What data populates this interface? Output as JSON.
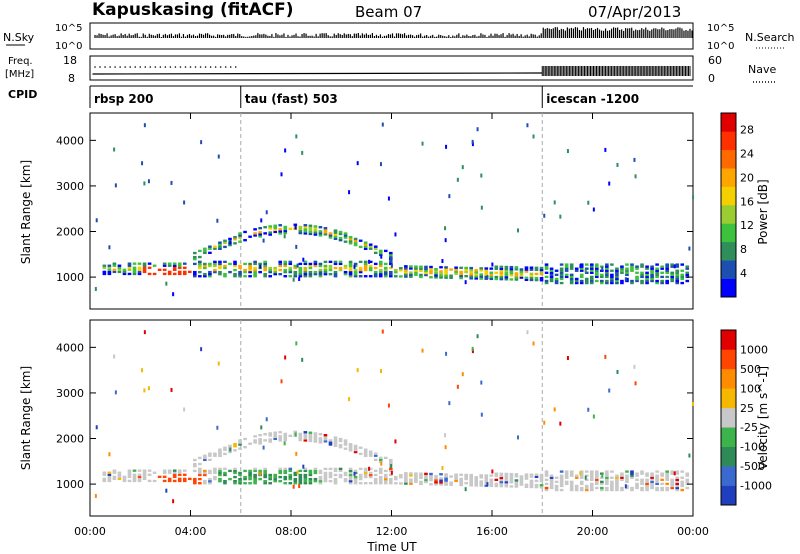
{
  "header": {
    "station": "Kapuskasing (fitACF)",
    "beam": "Beam 07",
    "date": "07/Apr/2013"
  },
  "time_axis": {
    "label": "Time UT",
    "ticks": [
      "00:00",
      "04:00",
      "08:00",
      "12:00",
      "16:00",
      "20:00",
      "00:00"
    ],
    "range_hours": [
      0,
      24
    ]
  },
  "sky_panel": {
    "left_label": "N.Sky",
    "right_label": "N.Search",
    "left_ticks": [
      "10^5",
      "10^0"
    ],
    "right_ticks": [
      "10^5",
      "10^0"
    ]
  },
  "freq_panel": {
    "left_label_top": "Freq.",
    "left_label_bottom": "[MHz]",
    "right_label": "Nave",
    "left_ticks": [
      "18",
      "8"
    ],
    "right_ticks": [
      "60",
      "0"
    ]
  },
  "cpid": {
    "label": "CPID",
    "segments": [
      {
        "name": "rbsp 200",
        "start_hour": 0
      },
      {
        "name": "tau (fast) 503",
        "start_hour": 6
      },
      {
        "name": "icescan -1200",
        "start_hour": 18
      }
    ]
  },
  "chart_data": [
    {
      "type": "heatmap",
      "title": "",
      "xlabel": "Time UT",
      "ylabel": "Slant Range [km]",
      "xlim": [
        0,
        24
      ],
      "ylim": [
        300,
        4600
      ],
      "yticks": [
        "1000",
        "2000",
        "3000",
        "4000"
      ],
      "colorbar": {
        "label": "Power [dB]",
        "ticks": [
          "4",
          "8",
          "12",
          "16",
          "20",
          "24",
          "28"
        ],
        "range": [
          0,
          30
        ],
        "colors": [
          "#0000ff",
          "#1c4fb0",
          "#2f8f5b",
          "#3cc23c",
          "#9acd32",
          "#f5d000",
          "#ffa500",
          "#ff6a00",
          "#ff3000",
          "#e00000"
        ]
      },
      "features": [
        {
          "name": "E-region/low band",
          "start_hour": 0.5,
          "end_hour": 24,
          "range_km_low": 950,
          "range_km_high": 1300
        },
        {
          "name": "arc",
          "start_hour": 4,
          "end_hour": 12,
          "range_km_low": 1300,
          "range_km_high": 2100
        }
      ]
    },
    {
      "type": "heatmap",
      "title": "",
      "xlabel": "Time UT",
      "ylabel": "Slant Range [km]",
      "xlim": [
        0,
        24
      ],
      "ylim": [
        300,
        4600
      ],
      "yticks": [
        "1000",
        "2000",
        "3000",
        "4000"
      ],
      "colorbar": {
        "label": "Velocity [m s^-1]",
        "ticks": [
          "1000",
          "500",
          "100",
          "25",
          "-25",
          "-100",
          "-500",
          "-1000"
        ],
        "colors": [
          "#1f3fbf",
          "#3a6ad0",
          "#2e8b57",
          "#3cb44b",
          "#c8c8c8",
          "#f5b800",
          "#ff8c00",
          "#ff4500",
          "#e00000"
        ]
      }
    }
  ]
}
